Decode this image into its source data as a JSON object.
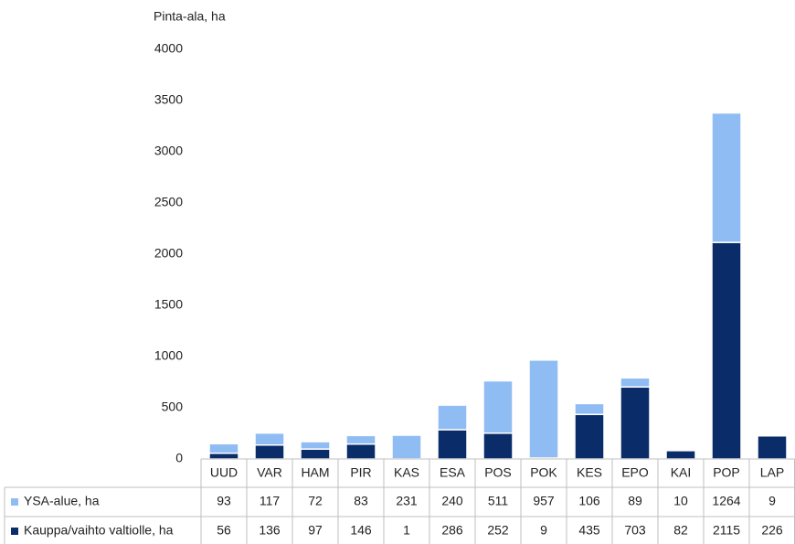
{
  "chart_data": {
    "type": "stacked_bar",
    "y_label": "Pinta-ala, ha",
    "categories": [
      "UUD",
      "VAR",
      "HAM",
      "PIR",
      "KAS",
      "ESA",
      "POS",
      "POK",
      "KES",
      "EPO",
      "KAI",
      "POP",
      "LAP"
    ],
    "series": [
      {
        "name": "YSA-alue, ha",
        "color": "#8fbcf2",
        "values": [
          93,
          117,
          72,
          83,
          231,
          240,
          511,
          957,
          106,
          89,
          10,
          1264,
          9
        ]
      },
      {
        "name": "Kauppa/vaihto valtiolle, ha",
        "color": "#0a2d6a",
        "values": [
          56,
          136,
          97,
          146,
          1,
          286,
          252,
          9,
          435,
          703,
          82,
          2115,
          226
        ]
      }
    ],
    "ylim": [
      0,
      4000
    ],
    "yticks": [
      0,
      500,
      1000,
      1500,
      2000,
      2500,
      3000,
      3500,
      4000
    ]
  }
}
